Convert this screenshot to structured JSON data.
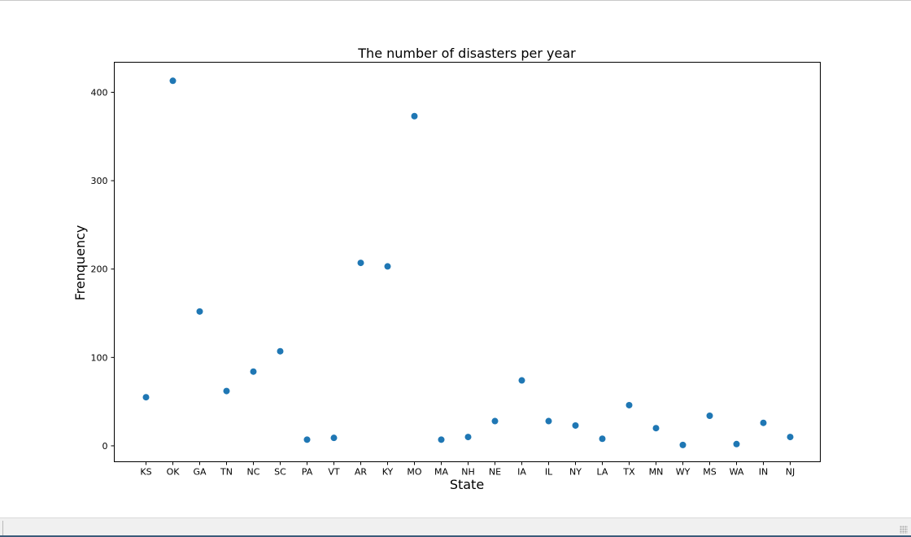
{
  "chart_data": {
    "type": "scatter",
    "title": "The number of disasters per year",
    "xlabel": "State",
    "ylabel": "Frenquency",
    "categories": [
      "KS",
      "OK",
      "GA",
      "TN",
      "NC",
      "SC",
      "PA",
      "VT",
      "AR",
      "KY",
      "MO",
      "MA",
      "NH",
      "NE",
      "IA",
      "IL",
      "NY",
      "LA",
      "TX",
      "MN",
      "WY",
      "MS",
      "WA",
      "IN",
      "NJ"
    ],
    "values": [
      55,
      413,
      152,
      62,
      84,
      107,
      7,
      9,
      207,
      203,
      373,
      7,
      10,
      28,
      74,
      28,
      23,
      8,
      46,
      20,
      1,
      34,
      2,
      26,
      10
    ],
    "ylim": [
      -18,
      434
    ],
    "yticks": [
      0,
      100,
      200,
      300,
      400
    ],
    "grid": false,
    "marker_color": "#1f77b4"
  }
}
